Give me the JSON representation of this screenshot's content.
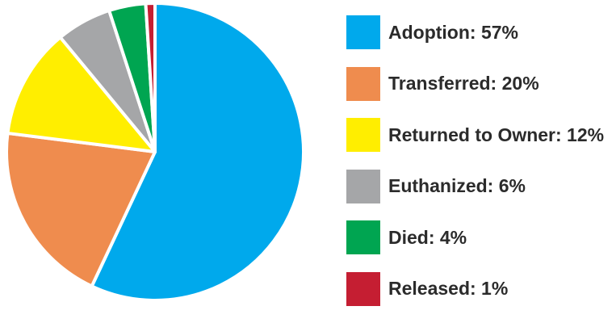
{
  "chart_data": {
    "type": "pie",
    "title": "",
    "slices": [
      {
        "label": "Adoption",
        "value": 57,
        "color": "#00a9ec",
        "legend_text": "Adoption: 57%"
      },
      {
        "label": "Transferred",
        "value": 20,
        "color": "#ef8c4e",
        "legend_text": "Transferred: 20%"
      },
      {
        "label": "Returned to Owner",
        "value": 12,
        "color": "#ffee00",
        "legend_text": "Returned to Owner: 12%"
      },
      {
        "label": "Euthanized",
        "value": 6,
        "color": "#a5a6a8",
        "legend_text": "Euthanized: 6%"
      },
      {
        "label": "Died",
        "value": 4,
        "color": "#00a551",
        "legend_text": "Died: 4%"
      },
      {
        "label": "Released",
        "value": 1,
        "color": "#c51e32",
        "legend_text": "Released: 1%"
      }
    ],
    "legend_position": "right"
  }
}
